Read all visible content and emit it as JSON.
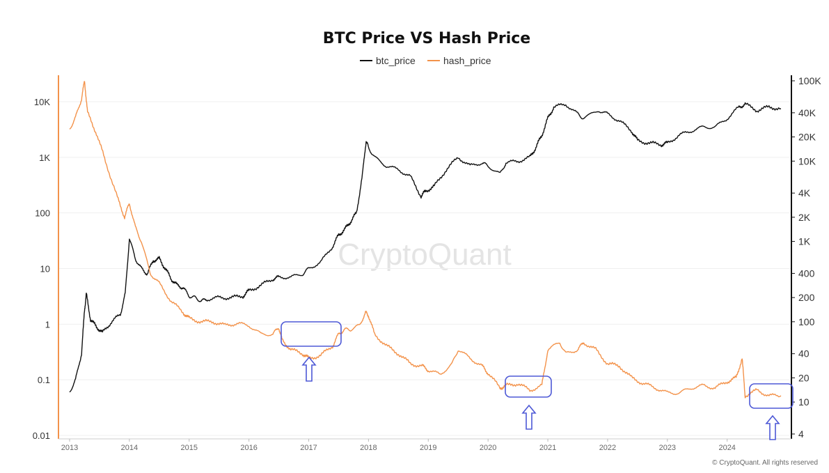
{
  "chart_data": {
    "type": "line",
    "title": "BTC Price VS Hash Price",
    "legend_placement": "top-center",
    "grid": true,
    "x_ticks": [
      "2013",
      "2014",
      "2015",
      "2016",
      "2017",
      "2018",
      "2019",
      "2020",
      "2021",
      "2022",
      "2023",
      "2024"
    ],
    "x_range": [
      2012.93,
      2024.9
    ],
    "y_left": {
      "scale": "log",
      "range": [
        0.01,
        40000
      ],
      "tick_values": [
        0.01,
        0.1,
        1,
        10,
        100,
        1000,
        10000
      ],
      "tick_labels": [
        "0.01",
        "0.1",
        "1",
        "10",
        "100",
        "1K",
        "10K"
      ]
    },
    "y_right": {
      "scale": "log",
      "range": [
        4,
        100000
      ],
      "tick_values": [
        4,
        10,
        20,
        40,
        100,
        200,
        400,
        1000,
        2000,
        4000,
        10000,
        20000,
        40000,
        100000
      ],
      "tick_labels": [
        "4",
        "10",
        "20",
        "40",
        "100",
        "200",
        "400",
        "1K",
        "2K",
        "4K",
        "10K",
        "20K",
        "40K",
        "100K"
      ]
    },
    "series": [
      {
        "name": "btc_price",
        "axis": "left",
        "color": "#111111",
        "x": [
          2013.0,
          2013.1,
          2013.2,
          2013.25,
          2013.28,
          2013.35,
          2013.45,
          2013.55,
          2013.7,
          2013.85,
          2013.93,
          2014.0,
          2014.1,
          2014.2,
          2014.3,
          2014.4,
          2014.5,
          2014.6,
          2014.7,
          2014.8,
          2014.9,
          2015.0,
          2015.1,
          2015.2,
          2015.3,
          2015.5,
          2015.7,
          2015.9,
          2016.0,
          2016.2,
          2016.4,
          2016.5,
          2016.7,
          2016.9,
          2017.0,
          2017.2,
          2017.4,
          2017.5,
          2017.6,
          2017.7,
          2017.8,
          2017.9,
          2017.96,
          2018.0,
          2018.1,
          2018.3,
          2018.5,
          2018.7,
          2018.88,
          2018.96,
          2019.1,
          2019.3,
          2019.5,
          2019.7,
          2019.9,
          2020.0,
          2020.2,
          2020.3,
          2020.5,
          2020.7,
          2020.8,
          2020.9,
          2021.0,
          2021.1,
          2021.3,
          2021.5,
          2021.6,
          2021.85,
          2022.0,
          2022.2,
          2022.4,
          2022.5,
          2022.7,
          2022.9,
          2023.0,
          2023.2,
          2023.4,
          2023.6,
          2023.8,
          2024.0,
          2024.2,
          2024.3,
          2024.5,
          2024.7,
          2024.9
        ],
        "y": [
          0.06,
          0.1,
          0.3,
          1.8,
          3.5,
          1.2,
          0.9,
          0.7,
          1.1,
          1.5,
          3.5,
          35,
          15,
          10,
          8,
          14,
          15,
          10,
          6.5,
          5,
          4.5,
          3.2,
          3,
          2.6,
          2.8,
          3,
          3,
          3.2,
          4,
          5,
          6.5,
          7,
          7,
          8,
          10,
          13,
          25,
          40,
          50,
          70,
          100,
          500,
          2000,
          1500,
          1000,
          700,
          600,
          450,
          200,
          250,
          300,
          600,
          1000,
          700,
          800,
          700,
          500,
          800,
          850,
          1000,
          1500,
          2500,
          5000,
          8000,
          9000,
          6000,
          5000,
          7000,
          6000,
          4500,
          3000,
          2000,
          1800,
          1700,
          1800,
          2500,
          3000,
          3500,
          3500,
          5000,
          8000,
          9000,
          7000,
          8000,
          7500
        ]
      },
      {
        "name": "hash_price",
        "axis": "right",
        "color": "#f3924a",
        "x": [
          2013.0,
          2013.1,
          2013.2,
          2013.25,
          2013.3,
          2013.45,
          2013.6,
          2013.8,
          2013.92,
          2014.0,
          2014.1,
          2014.2,
          2014.35,
          2014.5,
          2014.7,
          2014.9,
          2015.0,
          2015.2,
          2015.4,
          2015.6,
          2015.8,
          2016.0,
          2016.2,
          2016.4,
          2016.5,
          2016.55,
          2016.7,
          2016.9,
          2017.0,
          2017.2,
          2017.4,
          2017.5,
          2017.6,
          2017.7,
          2017.85,
          2017.95,
          2018.0,
          2018.1,
          2018.3,
          2018.5,
          2018.7,
          2018.9,
          2019.0,
          2019.2,
          2019.4,
          2019.5,
          2019.7,
          2019.9,
          2020.0,
          2020.2,
          2020.3,
          2020.5,
          2020.7,
          2020.9,
          2021.0,
          2021.2,
          2021.3,
          2021.5,
          2021.6,
          2021.8,
          2022.0,
          2022.2,
          2022.4,
          2022.6,
          2022.8,
          2023.0,
          2023.2,
          2023.4,
          2023.6,
          2023.8,
          2024.0,
          2024.15,
          2024.25,
          2024.3,
          2024.5,
          2024.7,
          2024.9
        ],
        "y": [
          25000,
          35000,
          60000,
          100000,
          40000,
          22000,
          10000,
          3500,
          2000,
          3000,
          1500,
          1000,
          400,
          300,
          180,
          130,
          110,
          100,
          100,
          90,
          95,
          90,
          70,
          70,
          85,
          60,
          45,
          40,
          35,
          38,
          50,
          70,
          80,
          80,
          90,
          130,
          120,
          70,
          50,
          40,
          30,
          28,
          25,
          22,
          30,
          45,
          35,
          28,
          23,
          15,
          16,
          17,
          14,
          16,
          45,
          55,
          40,
          45,
          55,
          45,
          30,
          28,
          20,
          17,
          15,
          13,
          13,
          15,
          16,
          15,
          18,
          20,
          35,
          12,
          14,
          12,
          12
        ]
      }
    ],
    "annotations": [
      {
        "type": "box",
        "x_range": [
          2016.55,
          2017.5
        ],
        "note": "highlight"
      },
      {
        "type": "box",
        "x_range": [
          2020.2,
          2020.95
        ],
        "note": "highlight"
      },
      {
        "type": "box",
        "x_range": [
          2024.2,
          2024.9
        ],
        "note": "highlight"
      }
    ]
  },
  "legend": {
    "btc_label": "btc_price",
    "hash_label": "hash_price"
  },
  "watermark": "CryptoQuant",
  "copyright": "© CryptoQuant. All rights reserved",
  "colors": {
    "btc": "#111111",
    "hash": "#f3924a",
    "annotation": "#4d58d6"
  }
}
